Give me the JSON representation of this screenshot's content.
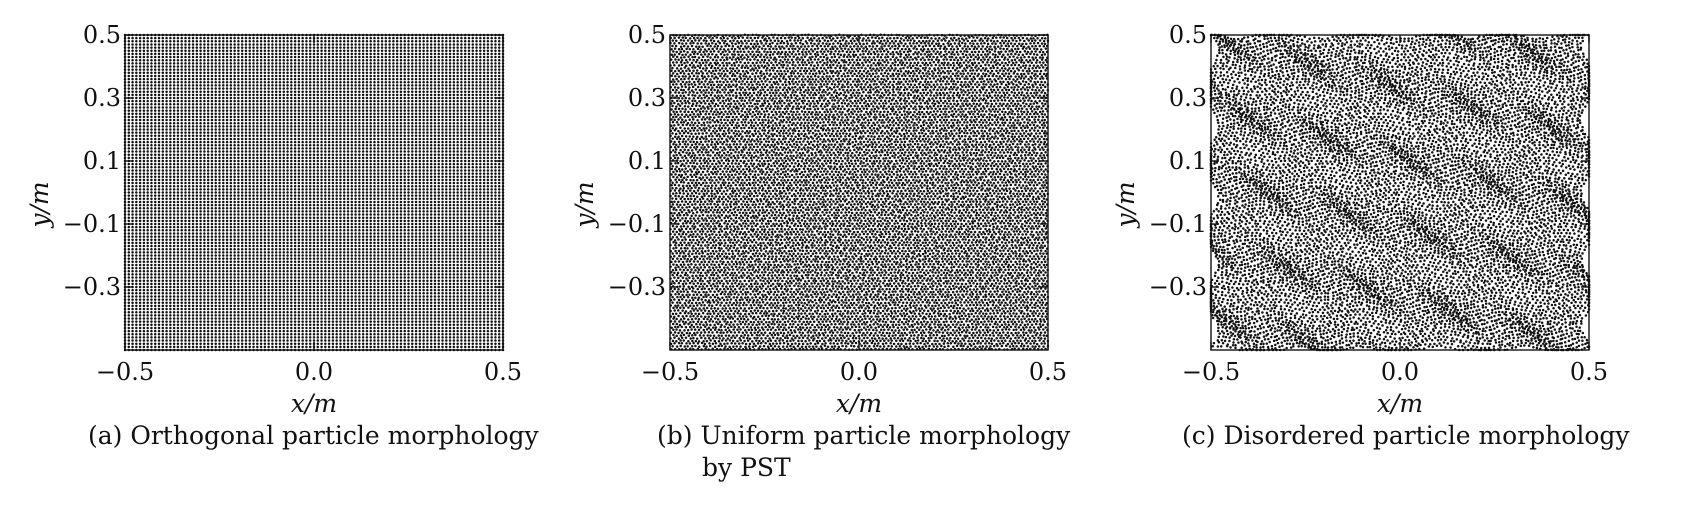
{
  "chart_data": [
    {
      "type": "scatter",
      "caption_line1": "(a) Orthogonal particle morphology",
      "caption_line2": "",
      "xlabel": "x/m",
      "ylabel": "y/m",
      "xlim": [
        -0.5,
        0.5
      ],
      "ylim": [
        -0.5,
        0.5
      ],
      "x_ticks": [
        "−0.5",
        "0.0",
        "0.5"
      ],
      "y_ticks": [
        "0.5",
        "0.3",
        "0.1",
        "−0.1",
        "−0.3"
      ],
      "x_tick_values": [
        -0.5,
        0.0,
        0.5
      ],
      "y_tick_values": [
        0.5,
        0.3,
        0.1,
        -0.1,
        -0.3
      ],
      "morphology": "orthogonal",
      "particle_spacing": 0.01,
      "grid": false
    },
    {
      "type": "scatter",
      "caption_line1": "(b) Uniform particle morphology",
      "caption_line2": "by PST",
      "xlabel": "x/m",
      "ylabel": "y/m",
      "xlim": [
        -0.5,
        0.5
      ],
      "ylim": [
        -0.5,
        0.5
      ],
      "x_ticks": [
        "−0.5",
        "0.0",
        "0.5"
      ],
      "y_ticks": [
        "0.5",
        "0.3",
        "0.1",
        "−0.1",
        "−0.3"
      ],
      "x_tick_values": [
        -0.5,
        0.0,
        0.5
      ],
      "y_tick_values": [
        0.5,
        0.3,
        0.1,
        -0.1,
        -0.3
      ],
      "morphology": "uniform",
      "particle_spacing": 0.01,
      "grid": false
    },
    {
      "type": "scatter",
      "caption_line1": "(c) Disordered particle morphology",
      "caption_line2": "",
      "xlabel": "x/m",
      "ylabel": "y/m",
      "xlim": [
        -0.5,
        0.5
      ],
      "ylim": [
        -0.5,
        0.5
      ],
      "x_ticks": [
        "−0.5",
        "0.0",
        "0.5"
      ],
      "y_ticks": [
        "0.5",
        "0.3",
        "0.1",
        "−0.1",
        "−0.3"
      ],
      "x_tick_values": [
        -0.5,
        0.0,
        0.5
      ],
      "y_tick_values": [
        0.5,
        0.3,
        0.1,
        -0.1,
        -0.3
      ],
      "morphology": "disordered",
      "particle_spacing": 0.01,
      "grid": false
    }
  ],
  "colors": {
    "particle": "#111111",
    "axis": "#111111",
    "background": "#ffffff"
  }
}
